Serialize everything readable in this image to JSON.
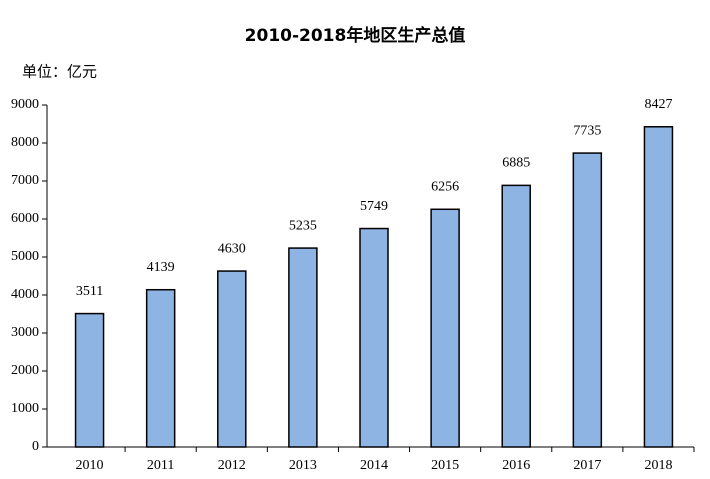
{
  "chart_data": {
    "type": "bar",
    "title": "2010-2018年地区生产总值",
    "y_label": "单位：亿元",
    "categories": [
      "2010",
      "2011",
      "2012",
      "2013",
      "2014",
      "2015",
      "2016",
      "2017",
      "2018"
    ],
    "values": [
      3511,
      4139,
      4630,
      5235,
      5749,
      6256,
      6885,
      7735,
      8427
    ],
    "color": "#8eb4e3",
    "ylim": [
      0,
      9000
    ],
    "yticks": [
      0,
      1000,
      2000,
      3000,
      4000,
      5000,
      6000,
      7000,
      8000,
      9000
    ],
    "grid": false
  }
}
